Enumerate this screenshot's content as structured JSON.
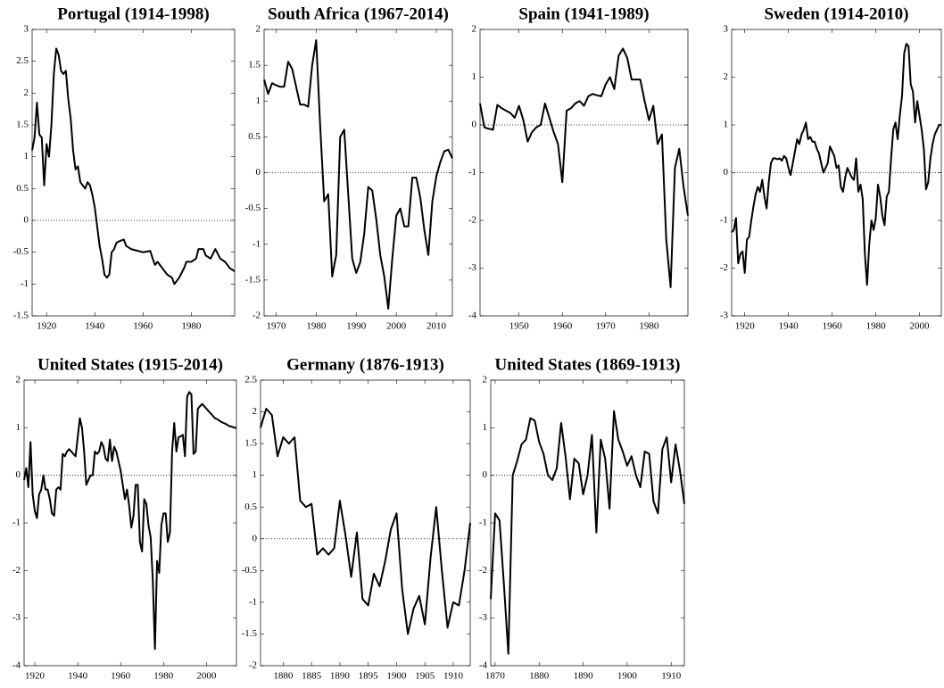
{
  "chart_data": [
    {
      "type": "line",
      "title": "Portugal (1914-1998)",
      "color": "#000000",
      "zero_line": true,
      "xlim": [
        1914,
        1998
      ],
      "xticks": [
        1920,
        1940,
        1960,
        1980
      ],
      "ylim": [
        -1.5,
        3
      ],
      "yticks": [
        -1.5,
        -1,
        -0.5,
        0,
        0.5,
        1,
        1.5,
        2,
        2.5,
        3
      ],
      "x": [
        1914,
        1915,
        1916,
        1917,
        1918,
        1919,
        1920,
        1921,
        1922,
        1923,
        1924,
        1925,
        1926,
        1927,
        1928,
        1929,
        1930,
        1931,
        1932,
        1933,
        1934,
        1935,
        1936,
        1937,
        1938,
        1939,
        1940,
        1941,
        1942,
        1943,
        1944,
        1945,
        1946,
        1947,
        1948,
        1949,
        1950,
        1952,
        1953,
        1955,
        1958,
        1960,
        1963,
        1964,
        1965,
        1966,
        1968,
        1970,
        1972,
        1973,
        1975,
        1977,
        1978,
        1980,
        1982,
        1983,
        1985,
        1986,
        1988,
        1990,
        1992,
        1994,
        1996,
        1998
      ],
      "values": [
        1.1,
        1.3,
        1.85,
        1.35,
        1.3,
        0.55,
        1.2,
        1.0,
        1.5,
        2.3,
        2.7,
        2.6,
        2.35,
        2.3,
        2.35,
        1.9,
        1.6,
        1.1,
        0.8,
        0.85,
        0.6,
        0.55,
        0.5,
        0.6,
        0.55,
        0.4,
        0.2,
        -0.1,
        -0.4,
        -0.6,
        -0.85,
        -0.9,
        -0.85,
        -0.5,
        -0.45,
        -0.35,
        -0.33,
        -0.3,
        -0.4,
        -0.45,
        -0.48,
        -0.5,
        -0.48,
        -0.6,
        -0.7,
        -0.65,
        -0.75,
        -0.85,
        -0.9,
        -1.0,
        -0.9,
        -0.75,
        -0.65,
        -0.65,
        -0.6,
        -0.45,
        -0.45,
        -0.55,
        -0.6,
        -0.45,
        -0.6,
        -0.65,
        -0.75,
        -0.8
      ]
    },
    {
      "type": "line",
      "title": "South Africa (1967-2014)",
      "color": "#000000",
      "zero_line": true,
      "xlim": [
        1967,
        2014
      ],
      "xticks": [
        1970,
        1980,
        1990,
        2000,
        2010
      ],
      "ylim": [
        -2,
        2
      ],
      "yticks": [
        -2,
        -1.5,
        -1,
        -0.5,
        0,
        0.5,
        1,
        1.5,
        2
      ],
      "x": [
        1967,
        1968,
        1969,
        1970,
        1971,
        1972,
        1973,
        1974,
        1975,
        1976,
        1977,
        1978,
        1979,
        1980,
        1981,
        1982,
        1983,
        1984,
        1985,
        1986,
        1987,
        1988,
        1989,
        1990,
        1991,
        1992,
        1993,
        1994,
        1995,
        1996,
        1997,
        1998,
        1999,
        2000,
        2001,
        2002,
        2003,
        2004,
        2005,
        2006,
        2007,
        2008,
        2009,
        2010,
        2011,
        2012,
        2013,
        2014
      ],
      "values": [
        1.3,
        1.1,
        1.25,
        1.22,
        1.2,
        1.2,
        1.55,
        1.45,
        1.2,
        0.95,
        0.95,
        0.92,
        1.5,
        1.85,
        0.65,
        -0.4,
        -0.3,
        -1.45,
        -1.15,
        0.5,
        0.6,
        -0.3,
        -1.2,
        -1.4,
        -1.25,
        -0.85,
        -0.2,
        -0.25,
        -0.65,
        -1.15,
        -1.45,
        -1.9,
        -1.2,
        -0.6,
        -0.5,
        -0.75,
        -0.75,
        -0.07,
        -0.07,
        -0.35,
        -0.8,
        -1.15,
        -0.4,
        -0.05,
        0.15,
        0.3,
        0.32,
        0.2
      ]
    },
    {
      "type": "line",
      "title": "Spain (1941-1989)",
      "color": "#000000",
      "zero_line": true,
      "xlim": [
        1941,
        1989
      ],
      "xticks": [
        1950,
        1960,
        1970,
        1980
      ],
      "ylim": [
        -4,
        2
      ],
      "yticks": [
        -4,
        -3,
        -2,
        -1,
        0,
        1,
        2
      ],
      "x": [
        1941,
        1942,
        1943,
        1944,
        1945,
        1946,
        1947,
        1948,
        1949,
        1950,
        1951,
        1952,
        1953,
        1954,
        1955,
        1956,
        1957,
        1958,
        1959,
        1960,
        1961,
        1962,
        1963,
        1964,
        1965,
        1966,
        1967,
        1968,
        1969,
        1970,
        1971,
        1972,
        1973,
        1974,
        1975,
        1976,
        1977,
        1978,
        1979,
        1980,
        1981,
        1982,
        1983,
        1984,
        1985,
        1986,
        1987,
        1988,
        1989
      ],
      "values": [
        0.45,
        -0.05,
        -0.08,
        -0.1,
        0.42,
        0.35,
        0.3,
        0.25,
        0.15,
        0.4,
        0.1,
        -0.35,
        -0.15,
        -0.05,
        0.0,
        0.45,
        0.15,
        -0.15,
        -0.4,
        -1.2,
        0.3,
        0.35,
        0.45,
        0.5,
        0.4,
        0.6,
        0.65,
        0.62,
        0.6,
        0.85,
        1.0,
        0.75,
        1.45,
        1.6,
        1.4,
        0.95,
        0.95,
        0.95,
        0.5,
        0.1,
        0.4,
        -0.4,
        -0.2,
        -2.4,
        -3.4,
        -0.9,
        -0.5,
        -1.3,
        -1.9
      ]
    },
    {
      "type": "line",
      "title": "Sweden (1914-2010)",
      "color": "#000000",
      "zero_line": true,
      "xlim": [
        1914,
        2010
      ],
      "xticks": [
        1920,
        1940,
        1960,
        1980,
        2000
      ],
      "ylim": [
        -3,
        3
      ],
      "yticks": [
        -3,
        -2,
        -1,
        0,
        1,
        2,
        3
      ],
      "x": [
        1914,
        1915,
        1916,
        1917,
        1918,
        1919,
        1920,
        1921,
        1922,
        1923,
        1924,
        1925,
        1926,
        1927,
        1928,
        1929,
        1930,
        1931,
        1932,
        1933,
        1934,
        1935,
        1936,
        1937,
        1938,
        1939,
        1940,
        1941,
        1942,
        1943,
        1944,
        1945,
        1946,
        1947,
        1948,
        1949,
        1950,
        1951,
        1952,
        1953,
        1954,
        1955,
        1956,
        1957,
        1958,
        1959,
        1960,
        1961,
        1962,
        1963,
        1964,
        1965,
        1966,
        1967,
        1968,
        1969,
        1970,
        1971,
        1972,
        1973,
        1974,
        1975,
        1976,
        1977,
        1978,
        1979,
        1980,
        1981,
        1982,
        1983,
        1984,
        1985,
        1986,
        1987,
        1988,
        1989,
        1990,
        1991,
        1992,
        1993,
        1994,
        1995,
        1996,
        1997,
        1998,
        1999,
        2000,
        2001,
        2002,
        2003,
        2004,
        2005,
        2006,
        2007,
        2008,
        2009,
        2010
      ],
      "values": [
        -1.25,
        -1.2,
        -0.95,
        -1.9,
        -1.7,
        -1.65,
        -2.1,
        -1.4,
        -1.35,
        -1.0,
        -0.7,
        -0.45,
        -0.3,
        -0.4,
        -0.15,
        -0.5,
        -0.75,
        -0.2,
        0.2,
        0.3,
        0.3,
        0.28,
        0.3,
        0.25,
        0.35,
        0.3,
        0.1,
        -0.05,
        0.2,
        0.45,
        0.7,
        0.6,
        0.8,
        0.9,
        1.05,
        0.7,
        0.75,
        0.65,
        0.65,
        0.5,
        0.4,
        0.2,
        0.0,
        0.1,
        0.2,
        0.55,
        0.45,
        0.35,
        0.1,
        0.15,
        -0.3,
        -0.4,
        -0.1,
        0.1,
        0.0,
        -0.1,
        -0.15,
        0.3,
        -0.4,
        -0.25,
        -0.55,
        -1.7,
        -2.35,
        -1.5,
        -1.0,
        -1.2,
        -0.95,
        -0.25,
        -0.5,
        -0.9,
        -1.1,
        -0.5,
        -0.4,
        0.3,
        0.9,
        1.05,
        0.7,
        1.2,
        1.6,
        2.5,
        2.7,
        2.65,
        1.85,
        1.7,
        1.05,
        1.5,
        1.2,
        0.9,
        0.5,
        -0.35,
        -0.2,
        0.3,
        0.6,
        0.8,
        0.9,
        1.0,
        1.0
      ]
    },
    {
      "type": "line",
      "title": "United States (1915-2014)",
      "color": "#000000",
      "zero_line": true,
      "xlim": [
        1915,
        2014
      ],
      "xticks": [
        1920,
        1940,
        1960,
        1980,
        2000
      ],
      "ylim": [
        -4,
        2
      ],
      "yticks": [
        -4,
        -3,
        -2,
        -1,
        0,
        1,
        2
      ],
      "x": [
        1915,
        1916,
        1917,
        1918,
        1919,
        1920,
        1921,
        1922,
        1923,
        1924,
        1925,
        1926,
        1927,
        1928,
        1929,
        1930,
        1931,
        1932,
        1933,
        1934,
        1935,
        1936,
        1937,
        1938,
        1939,
        1940,
        1941,
        1942,
        1943,
        1944,
        1945,
        1946,
        1947,
        1948,
        1949,
        1950,
        1951,
        1952,
        1953,
        1954,
        1955,
        1956,
        1957,
        1958,
        1959,
        1960,
        1961,
        1962,
        1963,
        1964,
        1965,
        1966,
        1967,
        1968,
        1969,
        1970,
        1971,
        1972,
        1973,
        1974,
        1975,
        1976,
        1977,
        1978,
        1979,
        1980,
        1981,
        1982,
        1983,
        1984,
        1985,
        1986,
        1987,
        1988,
        1989,
        1990,
        1991,
        1992,
        1993,
        1994,
        1995,
        1996,
        1997,
        1998,
        1999,
        2000,
        2001,
        2002,
        2003,
        2004,
        2005,
        2006,
        2007,
        2008,
        2009,
        2010,
        2011,
        2012,
        2013,
        2014
      ],
      "values": [
        -0.1,
        0.15,
        -0.25,
        0.7,
        -0.4,
        -0.75,
        -0.9,
        -0.4,
        -0.3,
        0.0,
        -0.3,
        -0.3,
        -0.5,
        -0.8,
        -0.85,
        -0.3,
        -0.25,
        -0.3,
        0.45,
        0.4,
        0.5,
        0.55,
        0.5,
        0.45,
        0.4,
        0.8,
        1.2,
        1.0,
        0.5,
        -0.2,
        -0.1,
        0.0,
        0.0,
        0.5,
        0.45,
        0.5,
        0.7,
        0.6,
        0.35,
        0.3,
        0.75,
        0.3,
        0.6,
        0.5,
        0.3,
        0.1,
        -0.2,
        -0.5,
        -0.3,
        -0.65,
        -1.1,
        -0.85,
        -0.2,
        -0.2,
        -1.4,
        -1.6,
        -0.5,
        -0.6,
        -1.05,
        -1.3,
        -2.2,
        -3.65,
        -1.8,
        -2.05,
        -1.05,
        -0.8,
        -0.8,
        -1.4,
        -1.2,
        0.5,
        1.1,
        0.5,
        0.8,
        0.82,
        0.85,
        0.4,
        1.65,
        1.75,
        1.7,
        0.45,
        0.5,
        1.4,
        1.45,
        1.5,
        1.45,
        1.4,
        1.35,
        1.3,
        1.25,
        1.2,
        1.18,
        1.15,
        1.12,
        1.1,
        1.08,
        1.05,
        1.03,
        1.02,
        1.0,
        1.0
      ]
    },
    {
      "type": "line",
      "title": "Germany (1876-1913)",
      "color": "#000000",
      "zero_line": true,
      "xlim": [
        1876,
        1913
      ],
      "xticks": [
        1880,
        1885,
        1890,
        1895,
        1900,
        1905,
        1910
      ],
      "ylim": [
        -2,
        2.5
      ],
      "yticks": [
        -2,
        -1.5,
        -1,
        -0.5,
        0,
        0.5,
        1,
        1.5,
        2,
        2.5
      ],
      "x": [
        1876,
        1877,
        1878,
        1879,
        1880,
        1881,
        1882,
        1883,
        1884,
        1885,
        1886,
        1887,
        1888,
        1889,
        1890,
        1891,
        1892,
        1893,
        1894,
        1895,
        1896,
        1897,
        1898,
        1899,
        1900,
        1901,
        1902,
        1903,
        1904,
        1905,
        1906,
        1907,
        1908,
        1909,
        1910,
        1911,
        1912,
        1913
      ],
      "values": [
        1.75,
        2.05,
        1.95,
        1.3,
        1.6,
        1.5,
        1.6,
        0.6,
        0.5,
        0.55,
        -0.25,
        -0.15,
        -0.25,
        -0.15,
        0.6,
        0.05,
        -0.6,
        0.1,
        -0.95,
        -1.05,
        -0.55,
        -0.75,
        -0.35,
        0.15,
        0.4,
        -0.8,
        -1.5,
        -1.1,
        -0.9,
        -1.35,
        -0.3,
        0.5,
        -0.5,
        -1.4,
        -1.0,
        -1.05,
        -0.5,
        0.25
      ]
    },
    {
      "type": "line",
      "title": "United States (1869-1913)",
      "color": "#000000",
      "zero_line": true,
      "xlim": [
        1869,
        1913
      ],
      "xticks": [
        1870,
        1880,
        1890,
        1900,
        1910
      ],
      "ylim": [
        -4,
        2
      ],
      "yticks": [
        -4,
        -3,
        -2,
        -1,
        0,
        1,
        2
      ],
      "x": [
        1869,
        1870,
        1871,
        1872,
        1873,
        1874,
        1875,
        1876,
        1877,
        1878,
        1879,
        1880,
        1881,
        1882,
        1883,
        1884,
        1885,
        1886,
        1887,
        1888,
        1889,
        1890,
        1891,
        1892,
        1893,
        1894,
        1895,
        1896,
        1897,
        1898,
        1899,
        1900,
        1901,
        1902,
        1903,
        1904,
        1905,
        1906,
        1907,
        1908,
        1909,
        1910,
        1911,
        1912,
        1913
      ],
      "values": [
        -2.6,
        -0.8,
        -0.95,
        -2.3,
        -3.75,
        0.0,
        0.3,
        0.65,
        0.75,
        1.2,
        1.15,
        0.7,
        0.45,
        0.0,
        -0.1,
        0.15,
        1.1,
        0.4,
        -0.5,
        0.35,
        0.25,
        -0.4,
        0.0,
        0.85,
        -1.2,
        0.75,
        0.35,
        -0.7,
        1.35,
        0.75,
        0.5,
        0.2,
        0.4,
        0.0,
        -0.25,
        0.5,
        0.45,
        -0.55,
        -0.8,
        0.55,
        0.8,
        -0.15,
        0.65,
        0.1,
        -0.6
      ]
    }
  ]
}
